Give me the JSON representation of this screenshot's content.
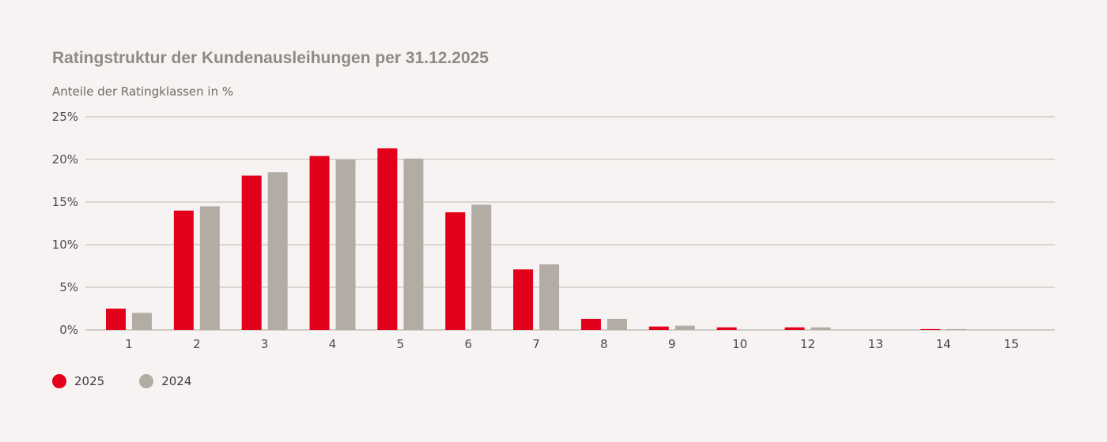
{
  "chart_data": {
    "type": "bar",
    "title": "Ratingstruktur der Kundenausleihungen per 31.12.2025",
    "subtitle": "Anteile der Ratingklassen in %",
    "categories": [
      "1",
      "2",
      "3",
      "4",
      "5",
      "6",
      "7",
      "8",
      "9",
      "10",
      "12",
      "13",
      "14",
      "15"
    ],
    "series": [
      {
        "name": "2025",
        "color": "#e2001a",
        "values": [
          2.5,
          14.0,
          18.1,
          20.4,
          21.3,
          13.8,
          7.1,
          1.3,
          0.4,
          0.3,
          0.3,
          0.0,
          0.1,
          0.0
        ]
      },
      {
        "name": "2024",
        "color": "#b2aca5",
        "values": [
          2.0,
          14.5,
          18.5,
          20.0,
          20.1,
          14.7,
          7.7,
          1.3,
          0.5,
          0.0,
          0.3,
          0.05,
          0.1,
          0.0
        ]
      }
    ],
    "ylim": [
      0,
      25
    ],
    "yticks": [
      0,
      5,
      10,
      15,
      20,
      25
    ],
    "ytick_suffix": "%",
    "grid": true,
    "legend_position": "bottom-left"
  }
}
